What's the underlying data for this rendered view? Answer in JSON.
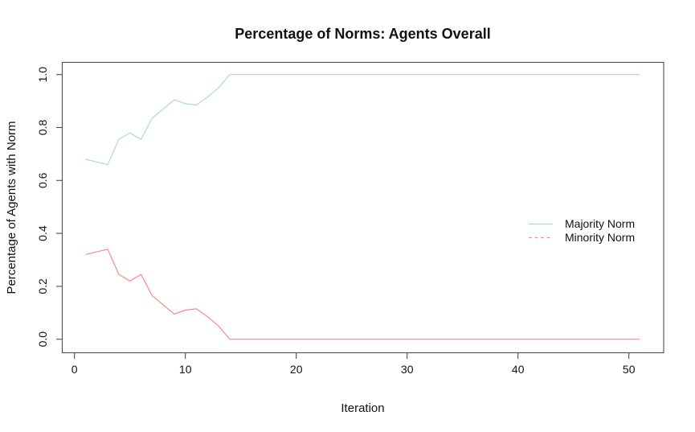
{
  "window": {
    "background": "#ffffff"
  },
  "chart_data": {
    "type": "line",
    "title": "Percentage of Norms: Agents Overall",
    "xlabel": "Iteration",
    "ylabel": "Percentage of Agents with Norm",
    "x_start": 1,
    "x_end": 51,
    "xlim": [
      -1.1,
      53.1
    ],
    "ylim": [
      -0.05,
      1.045
    ],
    "grid": "off",
    "x_axis": {
      "ticks": [
        {
          "v": 0,
          "label": "0"
        },
        {
          "v": 10,
          "label": "10"
        },
        {
          "v": 20,
          "label": "20"
        },
        {
          "v": 30,
          "label": "30"
        },
        {
          "v": 40,
          "label": "40"
        },
        {
          "v": 50,
          "label": "50"
        }
      ]
    },
    "y_axis": {
      "ticks": [
        {
          "v": 0.0,
          "label": "0.0"
        },
        {
          "v": 0.2,
          "label": "0.2"
        },
        {
          "v": 0.4,
          "label": "0.4"
        },
        {
          "v": 0.6,
          "label": "0.6"
        },
        {
          "v": 0.8,
          "label": "0.8"
        },
        {
          "v": 1.0,
          "label": "1.0"
        }
      ]
    },
    "series": [
      {
        "name": "Majority Norm",
        "color": "#ADD8E6",
        "line_style": "solid",
        "values": [
          0.68,
          0.67,
          0.66,
          0.755,
          0.78,
          0.755,
          0.835,
          0.87,
          0.905,
          0.89,
          0.885,
          0.915,
          0.95,
          1.0,
          1.0,
          1.0,
          1.0,
          1.0,
          1.0,
          1.0,
          1.0,
          1.0,
          1.0,
          1.0,
          1.0,
          1.0,
          1.0,
          1.0,
          1.0,
          1.0,
          1.0,
          1.0,
          1.0,
          1.0,
          1.0,
          1.0,
          1.0,
          1.0,
          1.0,
          1.0,
          1.0,
          1.0,
          1.0,
          1.0,
          1.0,
          1.0,
          1.0,
          1.0,
          1.0,
          1.0,
          1.0
        ]
      },
      {
        "name": "Minority Norm",
        "color": "#FF8888",
        "line_style": "solid",
        "values": [
          0.32,
          0.33,
          0.34,
          0.245,
          0.22,
          0.245,
          0.165,
          0.13,
          0.095,
          0.11,
          0.115,
          0.085,
          0.05,
          0.0,
          0.0,
          0.0,
          0.0,
          0.0,
          0.0,
          0.0,
          0.0,
          0.0,
          0.0,
          0.0,
          0.0,
          0.0,
          0.0,
          0.0,
          0.0,
          0.0,
          0.0,
          0.0,
          0.0,
          0.0,
          0.0,
          0.0,
          0.0,
          0.0,
          0.0,
          0.0,
          0.0,
          0.0,
          0.0,
          0.0,
          0.0,
          0.0,
          0.0,
          0.0,
          0.0,
          0.0,
          0.0
        ]
      }
    ],
    "legend": {
      "position": "right-middle",
      "border": "none",
      "entries": [
        {
          "label": "Majority Norm",
          "color": "#ADD8E6",
          "line_style": "solid"
        },
        {
          "label": "Minority Norm",
          "color": "#FF8888",
          "line_style": "dashed"
        }
      ]
    }
  }
}
